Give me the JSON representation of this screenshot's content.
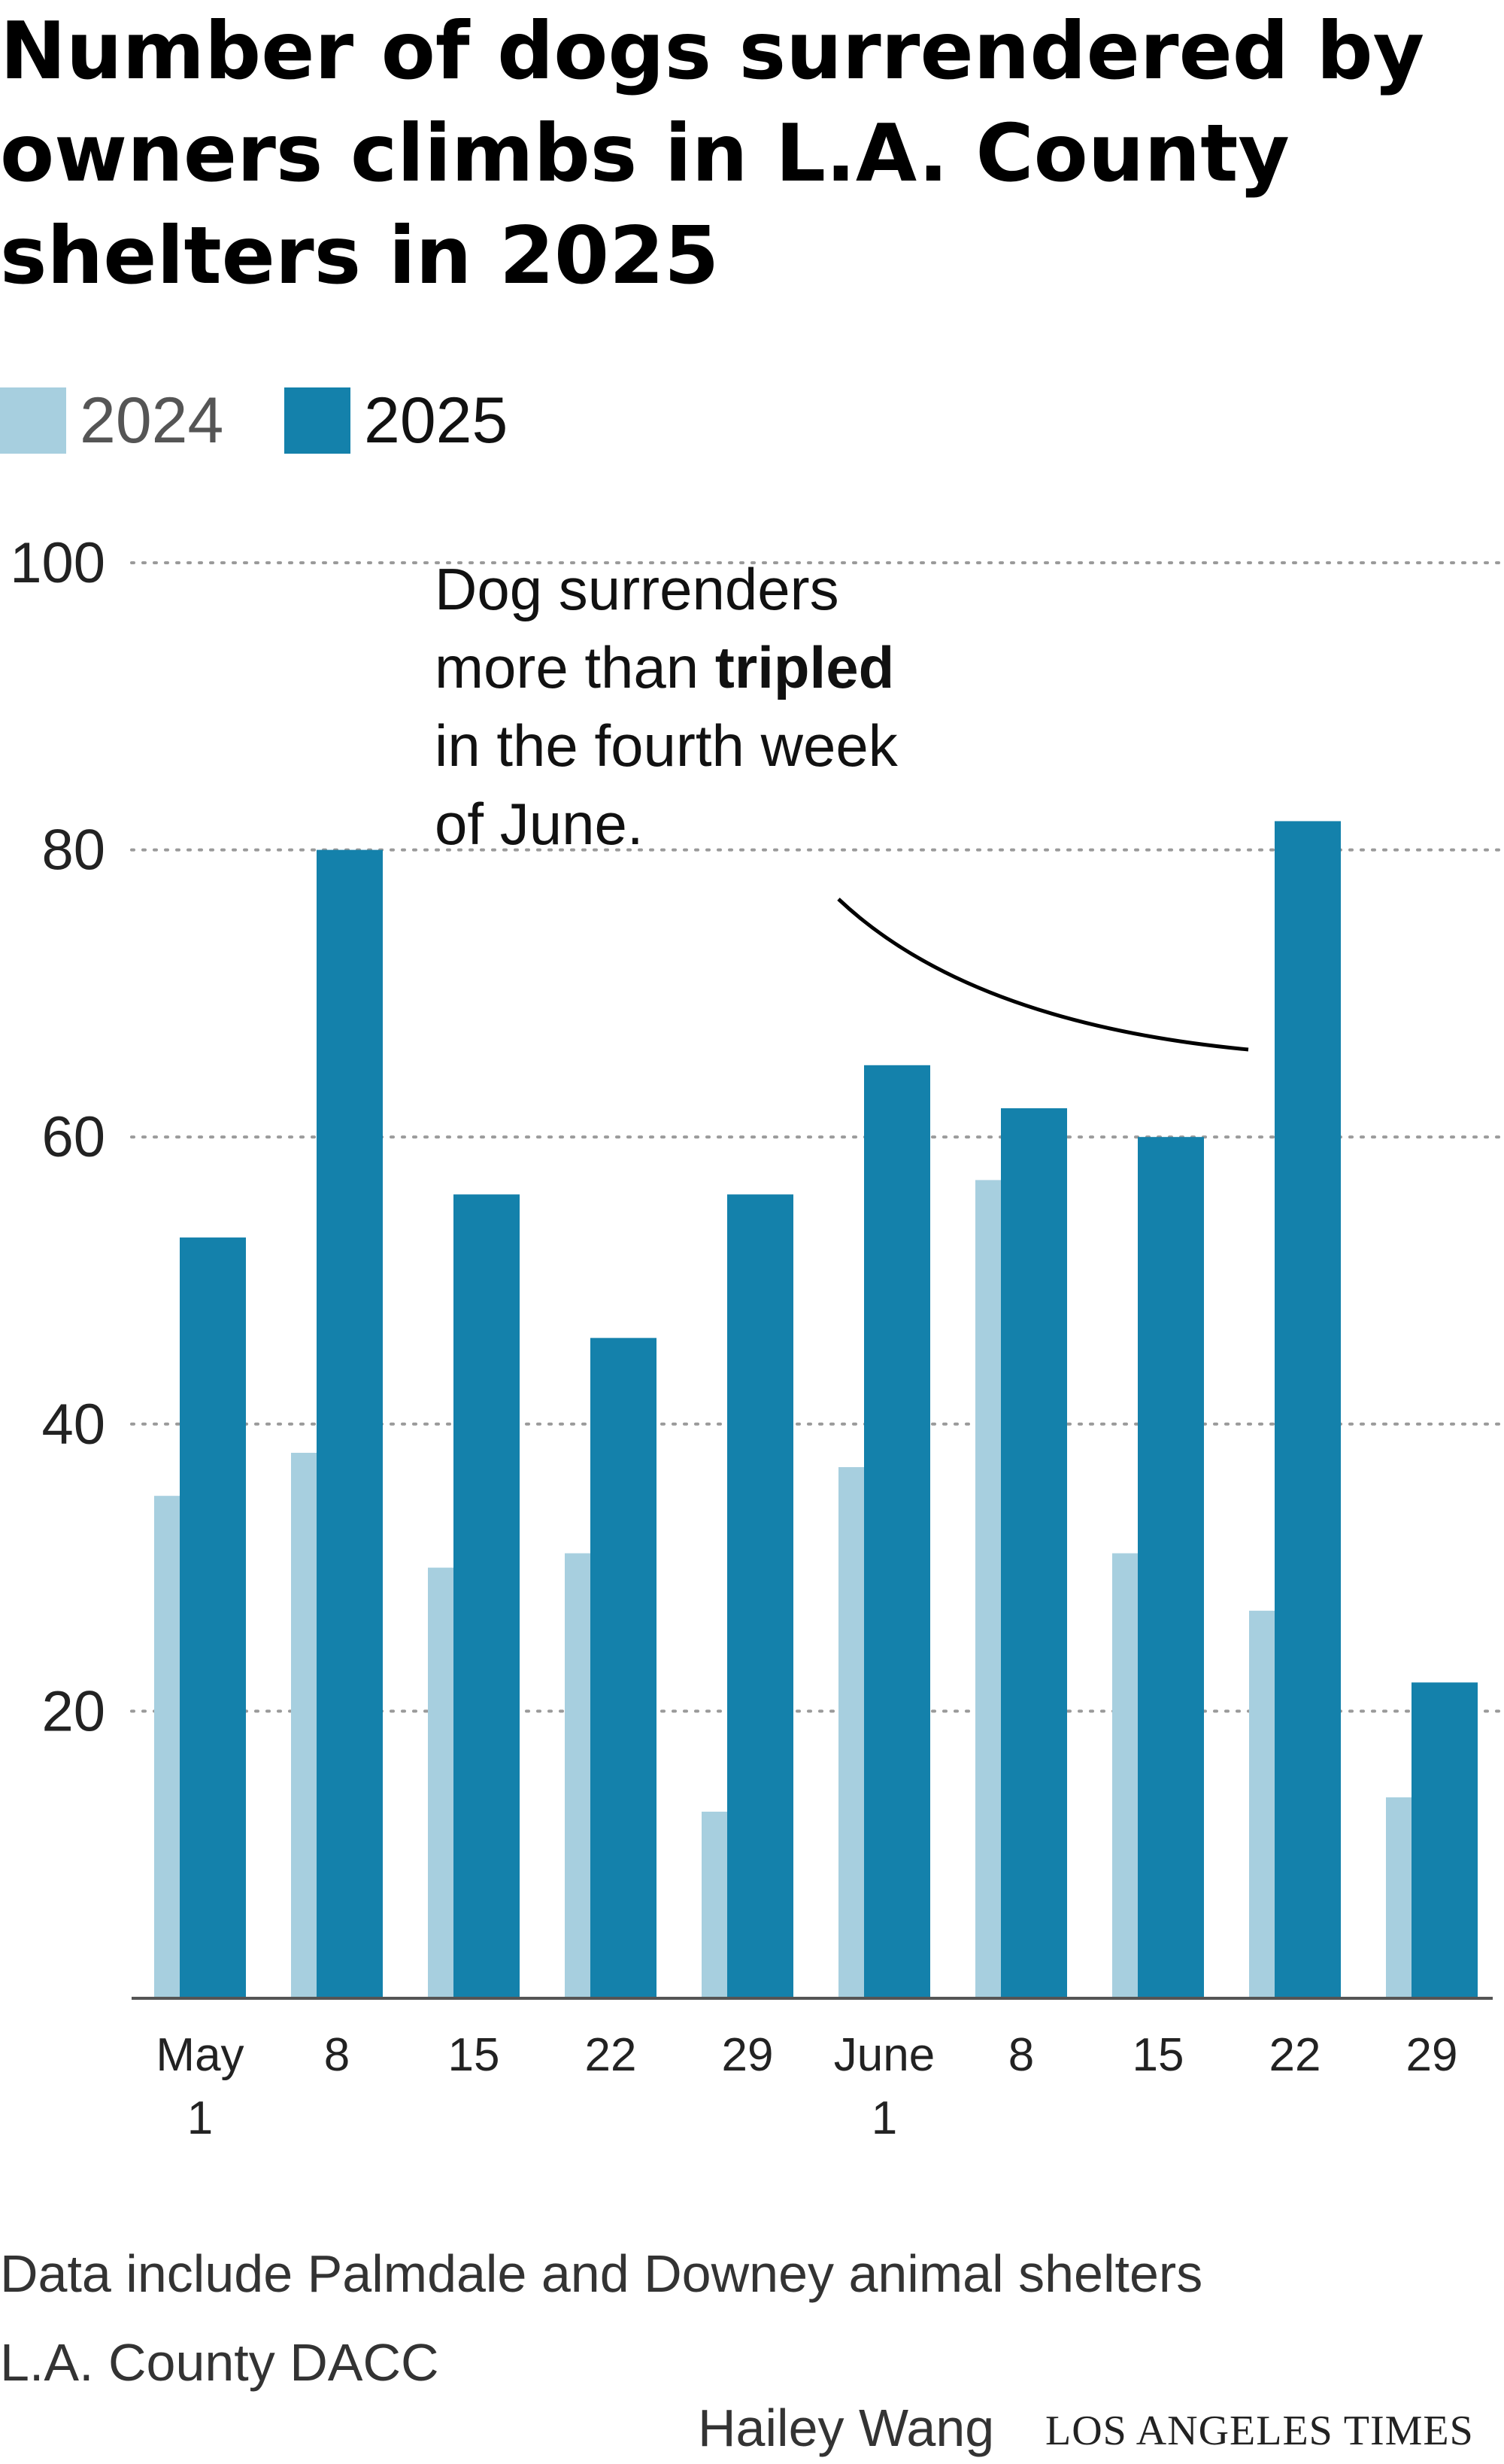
{
  "title": "Number of dogs surrendered by owners climbs in L.A. County shelters in 2025",
  "legend": [
    {
      "label": "2024",
      "color": "#a7cfdf"
    },
    {
      "label": "2025",
      "color": "#1481ab"
    }
  ],
  "annotation": {
    "lines": [
      {
        "parts": [
          {
            "text": "Dog surrenders",
            "bold": false
          }
        ]
      },
      {
        "parts": [
          {
            "text": "more than ",
            "bold": false
          },
          {
            "text": "tripled",
            "bold": true
          }
        ]
      },
      {
        "parts": [
          {
            "text": "in the fourth week",
            "bold": false
          }
        ]
      },
      {
        "parts": [
          {
            "text": "of June.",
            "bold": false
          }
        ]
      }
    ]
  },
  "chart_data": {
    "type": "bar",
    "categories": [
      "May 1",
      "8",
      "15",
      "22",
      "29",
      "June 1",
      "8",
      "15",
      "22",
      "29"
    ],
    "category_labels": [
      [
        "May",
        "1"
      ],
      [
        "8"
      ],
      [
        "15"
      ],
      [
        "22"
      ],
      [
        "29"
      ],
      [
        "June",
        "1"
      ],
      [
        "8"
      ],
      [
        "15"
      ],
      [
        "22"
      ],
      [
        "29"
      ]
    ],
    "series": [
      {
        "name": "2024",
        "color": "#a7cfdf",
        "values": [
          35,
          38,
          30,
          31,
          13,
          37,
          57,
          31,
          27,
          14
        ]
      },
      {
        "name": "2025",
        "color": "#1481ab",
        "values": [
          53,
          80,
          56,
          46,
          56,
          65,
          62,
          60,
          82,
          22
        ]
      }
    ],
    "ylim": [
      0,
      100
    ],
    "yticks": [
      20,
      40,
      60,
      80,
      100
    ],
    "grid": true,
    "legend_position": "top-left",
    "title": "Number of dogs surrendered by owners climbs in L.A. County shelters in 2025",
    "xlabel": "",
    "ylabel": ""
  },
  "footer": {
    "note": "Data include Palmdale and Downey animal shelters",
    "source": "L.A. County DACC",
    "byline": "Hailey Wang",
    "brand": "LOS ANGELES TIMES"
  }
}
